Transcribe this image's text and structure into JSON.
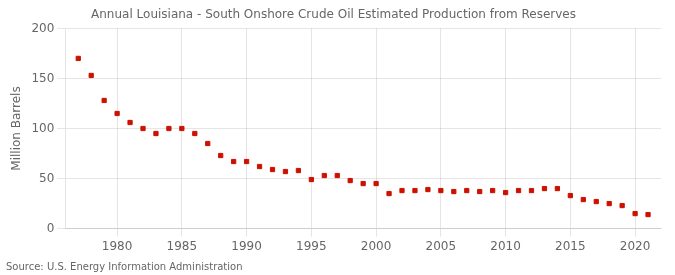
{
  "chart_data": {
    "type": "scatter",
    "title": "Annual Louisiana - South Onshore Crude Oil Estimated Production from Reserves",
    "ylabel": "Million Barrels",
    "annotations": [
      "Source: U.S. Energy Information Administration"
    ],
    "x": [
      1977,
      1978,
      1979,
      1980,
      1981,
      1982,
      1983,
      1984,
      1985,
      1986,
      1987,
      1988,
      1989,
      1990,
      1991,
      1992,
      1993,
      1994,
      1995,
      1996,
      1997,
      1998,
      1999,
      2000,
      2001,
      2002,
      2003,
      2004,
      2005,
      2006,
      2007,
      2008,
      2009,
      2010,
      2011,
      2012,
      2013,
      2014,
      2015,
      2016,
      2017,
      2018,
      2019,
      2020,
      2021
    ],
    "values": [
      170,
      153,
      128,
      115,
      106,
      100,
      95,
      100,
      100,
      95,
      85,
      73,
      67,
      67,
      62,
      59,
      57,
      58,
      49,
      53,
      53,
      48,
      45,
      45,
      35,
      38,
      38,
      39,
      38,
      37,
      38,
      37,
      38,
      36,
      38,
      38,
      40,
      40,
      33,
      29,
      27,
      25,
      23,
      15,
      14
    ],
    "color": "#CC1100",
    "marker": "square",
    "xlim": [
      1976,
      2022
    ],
    "xticks": [
      1980,
      1985,
      1990,
      1995,
      2000,
      2005,
      2010,
      2015,
      2020
    ],
    "ylim": [
      0,
      200
    ],
    "yticks": [
      0,
      50,
      100,
      150,
      200
    ],
    "grid": true
  }
}
